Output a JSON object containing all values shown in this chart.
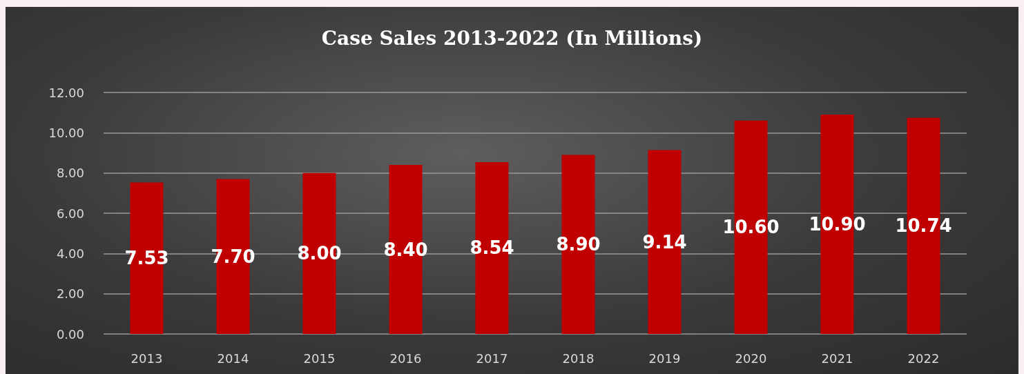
{
  "chart_data": {
    "type": "bar",
    "title": "Case Sales 2013-2022 (In Millions)",
    "categories": [
      "2013",
      "2014",
      "2015",
      "2016",
      "2017",
      "2018",
      "2019",
      "2020",
      "2021",
      "2022"
    ],
    "values": [
      7.53,
      7.7,
      8.0,
      8.4,
      8.54,
      8.9,
      9.14,
      10.6,
      10.9,
      10.74
    ],
    "value_labels": [
      "7.53",
      "7.70",
      "8.00",
      "8.40",
      "8.54",
      "8.90",
      "9.14",
      "10.60",
      "10.90",
      "10.74"
    ],
    "color": "#c00000",
    "ylim": [
      0,
      12
    ],
    "yticks": [
      {
        "value": 0,
        "label": "0.00"
      },
      {
        "value": 2,
        "label": "2.00"
      },
      {
        "value": 4,
        "label": "4.00"
      },
      {
        "value": 6,
        "label": "6.00"
      },
      {
        "value": 8,
        "label": "8.00"
      },
      {
        "value": 10,
        "label": "10.00"
      },
      {
        "value": 12,
        "label": "12.00"
      }
    ],
    "grid": true
  }
}
